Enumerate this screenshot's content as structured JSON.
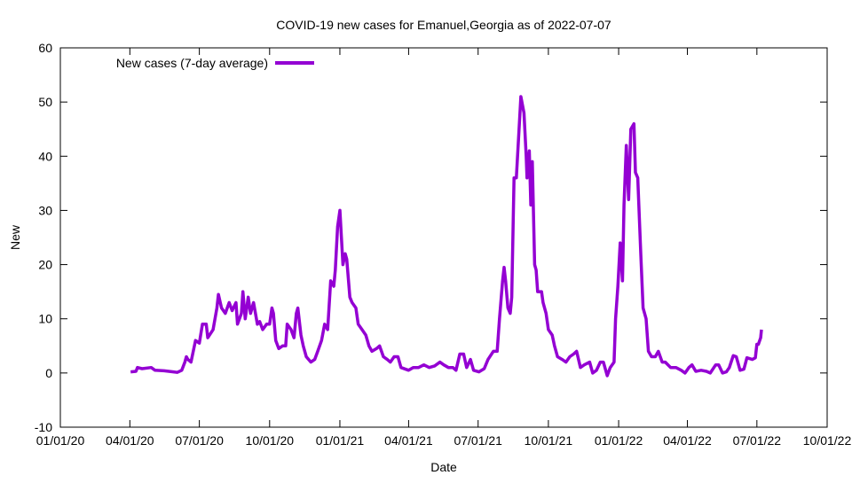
{
  "chart_data": {
    "type": "line",
    "title": "COVID-19 new cases for Emanuel,Georgia as of 2022-07-07",
    "xlabel": "Date",
    "ylabel": "New",
    "x_unit": "days since 2020-01-01",
    "xlim": [
      0,
      1004
    ],
    "ylim": [
      -10,
      60
    ],
    "grid": false,
    "legend_position": "top-left",
    "x_ticks": [
      {
        "label": "01/01/20",
        "value": 0
      },
      {
        "label": "04/01/20",
        "value": 91
      },
      {
        "label": "07/01/20",
        "value": 182
      },
      {
        "label": "10/01/20",
        "value": 274
      },
      {
        "label": "01/01/21",
        "value": 366
      },
      {
        "label": "04/01/21",
        "value": 456
      },
      {
        "label": "07/01/21",
        "value": 547
      },
      {
        "label": "10/01/21",
        "value": 639
      },
      {
        "label": "01/01/22",
        "value": 731
      },
      {
        "label": "04/01/22",
        "value": 821
      },
      {
        "label": "07/01/22",
        "value": 912
      },
      {
        "label": "10/01/22",
        "value": 1004
      }
    ],
    "y_ticks": [
      -10,
      0,
      10,
      20,
      30,
      40,
      50,
      60
    ],
    "series": [
      {
        "name": "New cases (7-day average)",
        "color": "#9400d3",
        "points": [
          [
            92,
            0.2
          ],
          [
            99,
            0.3
          ],
          [
            101,
            1
          ],
          [
            107,
            0.8
          ],
          [
            119,
            1
          ],
          [
            124,
            0.5
          ],
          [
            136,
            0.4
          ],
          [
            148,
            0.2
          ],
          [
            153,
            0.1
          ],
          [
            159,
            0.5
          ],
          [
            163,
            2
          ],
          [
            165,
            3
          ],
          [
            167,
            2.5
          ],
          [
            171,
            2
          ],
          [
            177,
            6
          ],
          [
            182,
            5.5
          ],
          [
            186,
            9
          ],
          [
            191,
            9
          ],
          [
            193,
            6.5
          ],
          [
            200,
            8
          ],
          [
            205,
            12
          ],
          [
            207,
            14.5
          ],
          [
            211,
            12
          ],
          [
            216,
            11
          ],
          [
            221,
            13
          ],
          [
            225,
            11.5
          ],
          [
            230,
            13
          ],
          [
            232,
            9
          ],
          [
            237,
            11
          ],
          [
            239,
            15
          ],
          [
            242,
            10
          ],
          [
            246,
            14
          ],
          [
            249,
            11
          ],
          [
            253,
            13
          ],
          [
            258,
            9
          ],
          [
            261,
            9.5
          ],
          [
            265,
            8
          ],
          [
            270,
            9
          ],
          [
            274,
            9
          ],
          [
            277,
            12
          ],
          [
            279,
            11
          ],
          [
            282,
            6
          ],
          [
            286,
            4.5
          ],
          [
            291,
            5
          ],
          [
            295,
            5
          ],
          [
            297,
            9
          ],
          [
            302,
            8
          ],
          [
            306,
            6.5
          ],
          [
            309,
            11
          ],
          [
            311,
            12
          ],
          [
            315,
            7
          ],
          [
            318,
            5
          ],
          [
            322,
            3
          ],
          [
            328,
            2
          ],
          [
            333,
            2.5
          ],
          [
            337,
            4
          ],
          [
            342,
            6
          ],
          [
            346,
            9
          ],
          [
            350,
            8
          ],
          [
            354,
            17
          ],
          [
            358,
            16
          ],
          [
            360,
            19
          ],
          [
            363,
            27
          ],
          [
            366,
            30
          ],
          [
            370,
            20
          ],
          [
            373,
            22
          ],
          [
            375,
            21
          ],
          [
            379,
            14
          ],
          [
            382,
            13
          ],
          [
            387,
            12
          ],
          [
            390,
            9
          ],
          [
            395,
            8
          ],
          [
            400,
            7
          ],
          [
            404,
            5
          ],
          [
            408,
            4
          ],
          [
            414,
            4.5
          ],
          [
            418,
            5
          ],
          [
            423,
            3
          ],
          [
            428,
            2.5
          ],
          [
            432,
            2
          ],
          [
            437,
            3
          ],
          [
            442,
            3
          ],
          [
            446,
            1
          ],
          [
            456,
            0.5
          ],
          [
            462,
            1
          ],
          [
            469,
            1
          ],
          [
            476,
            1.5
          ],
          [
            483,
            1
          ],
          [
            490,
            1.3
          ],
          [
            497,
            2
          ],
          [
            502,
            1.5
          ],
          [
            508,
            1
          ],
          [
            514,
            1
          ],
          [
            518,
            0.5
          ],
          [
            523,
            3.5
          ],
          [
            528,
            3.5
          ],
          [
            532,
            1
          ],
          [
            537,
            2.5
          ],
          [
            541,
            0.5
          ],
          [
            548,
            0.2
          ],
          [
            555,
            0.8
          ],
          [
            560,
            2.5
          ],
          [
            567,
            4
          ],
          [
            572,
            4
          ],
          [
            575,
            10
          ],
          [
            579,
            17
          ],
          [
            581,
            19.5
          ],
          [
            583,
            17
          ],
          [
            586,
            12
          ],
          [
            589,
            11
          ],
          [
            591,
            14
          ],
          [
            594,
            36
          ],
          [
            597,
            36
          ],
          [
            601,
            46
          ],
          [
            603,
            51
          ],
          [
            607,
            48
          ],
          [
            610,
            40
          ],
          [
            611,
            36
          ],
          [
            614,
            41
          ],
          [
            616,
            31
          ],
          [
            618,
            39
          ],
          [
            621,
            20
          ],
          [
            623,
            19
          ],
          [
            625,
            15
          ],
          [
            630,
            15
          ],
          [
            632,
            13
          ],
          [
            636,
            11
          ],
          [
            639,
            8
          ],
          [
            644,
            7
          ],
          [
            647,
            5
          ],
          [
            651,
            3
          ],
          [
            657,
            2.5
          ],
          [
            662,
            2
          ],
          [
            667,
            3
          ],
          [
            672,
            3.5
          ],
          [
            676,
            4
          ],
          [
            681,
            1
          ],
          [
            686,
            1.5
          ],
          [
            693,
            2
          ],
          [
            697,
            0
          ],
          [
            702,
            0.5
          ],
          [
            707,
            2
          ],
          [
            711,
            2
          ],
          [
            716,
            -0.5
          ],
          [
            720,
            1
          ],
          [
            725,
            2
          ],
          [
            727,
            10
          ],
          [
            730,
            16
          ],
          [
            733,
            24
          ],
          [
            736,
            17
          ],
          [
            738,
            31
          ],
          [
            741,
            42
          ],
          [
            744,
            32
          ],
          [
            747,
            45
          ],
          [
            751,
            46
          ],
          [
            753,
            37
          ],
          [
            756,
            36
          ],
          [
            760,
            22
          ],
          [
            763,
            12
          ],
          [
            767,
            10
          ],
          [
            770,
            4
          ],
          [
            774,
            3
          ],
          [
            779,
            3
          ],
          [
            783,
            4
          ],
          [
            788,
            2
          ],
          [
            792,
            2
          ],
          [
            799,
            1
          ],
          [
            806,
            1
          ],
          [
            813,
            0.5
          ],
          [
            818,
            0
          ],
          [
            823,
            1
          ],
          [
            827,
            1.5
          ],
          [
            832,
            0.3
          ],
          [
            839,
            0.5
          ],
          [
            846,
            0.3
          ],
          [
            851,
            0
          ],
          [
            858,
            1.5
          ],
          [
            862,
            1.5
          ],
          [
            867,
            0
          ],
          [
            872,
            0.2
          ],
          [
            876,
            1
          ],
          [
            881,
            3.2
          ],
          [
            885,
            3
          ],
          [
            890,
            0.5
          ],
          [
            895,
            0.7
          ],
          [
            899,
            2.8
          ],
          [
            906,
            2.5
          ],
          [
            910,
            2.8
          ],
          [
            912,
            5.3
          ],
          [
            914,
            5.3
          ],
          [
            917,
            6.5
          ],
          [
            918,
            8
          ]
        ]
      }
    ]
  }
}
